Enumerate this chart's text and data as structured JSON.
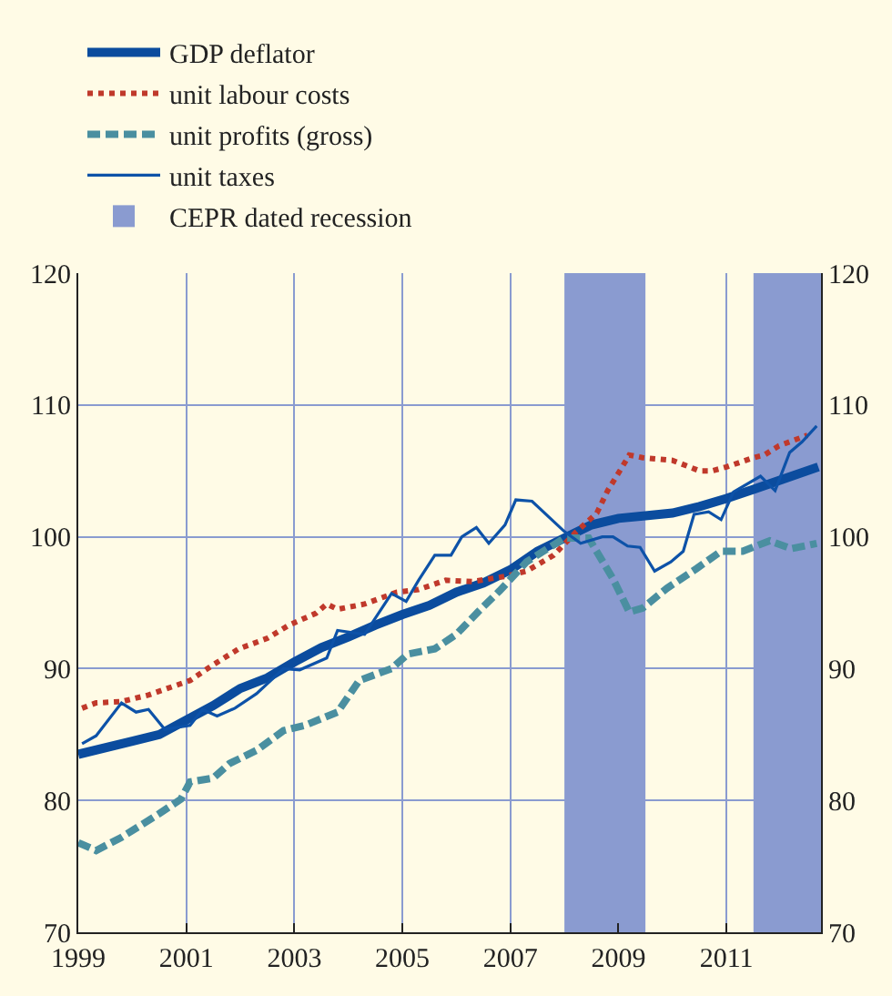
{
  "chart_data": {
    "type": "line",
    "xlim": [
      1999,
      2012.75
    ],
    "xticks": [
      1999,
      2001,
      2003,
      2005,
      2007,
      2009,
      2011
    ],
    "ylim": [
      70,
      120
    ],
    "yticks": [
      70,
      80,
      90,
      100,
      110,
      120
    ],
    "y2lim": [
      70,
      120
    ],
    "y2ticks": [
      70,
      80,
      90,
      100,
      110,
      120
    ],
    "grid": true,
    "legend": "top left",
    "marker": "none",
    "series": [
      {
        "name": "GDP deflator",
        "color": "#0b4c9e",
        "line_style": "solid",
        "x": [
          1999.0,
          2000,
          2000.5,
          2001,
          2001.5,
          2002,
          2002.5,
          2003,
          2003.5,
          2004,
          2004.5,
          2005,
          2005.5,
          2006,
          2006.5,
          2007,
          2007.5,
          2008,
          2008.5,
          2009,
          2009.5,
          2010,
          2010.5,
          2011,
          2011.5,
          2012,
          2012.7
        ],
        "values": [
          83.5,
          84.5,
          85.0,
          86.1,
          87.2,
          88.5,
          89.3,
          90.5,
          91.6,
          92.4,
          93.3,
          94.1,
          94.8,
          95.8,
          96.5,
          97.5,
          98.9,
          99.9,
          100.9,
          101.4,
          101.6,
          101.8,
          102.3,
          102.9,
          103.6,
          104.3,
          105.3
        ]
      },
      {
        "name": "unit labour costs",
        "color": "#c0392b",
        "line_style": "dotted",
        "x": [
          1999.07,
          1999.33,
          1999.8,
          2000.3,
          2001.07,
          2001.5,
          2001.97,
          2002.5,
          2002.9,
          2003.4,
          2003.6,
          2003.8,
          2004.3,
          2004.9,
          2005.3,
          2005.8,
          2006.3,
          2006.9,
          2007.3,
          2007.8,
          2008.2,
          2008.6,
          2008.8,
          2009.07,
          2009.2,
          2009.45,
          2010.0,
          2010.5,
          2010.73,
          2011.0,
          2011.5,
          2011.7,
          2011.97,
          2012.23,
          2012.5
        ],
        "values": [
          87.0,
          87.4,
          87.5,
          88.0,
          89.1,
          90.3,
          91.5,
          92.3,
          93.3,
          94.2,
          94.9,
          94.5,
          94.9,
          95.8,
          96.0,
          96.7,
          96.6,
          97.0,
          97.4,
          98.6,
          100.3,
          101.8,
          103.5,
          105.3,
          106.2,
          106.0,
          105.8,
          105.0,
          105.0,
          105.3,
          106.0,
          106.2,
          106.9,
          107.3,
          107.7
        ]
      },
      {
        "name": "unit profits (gross)",
        "color": "#4a8fa0",
        "line_style": "dashed",
        "x": [
          1999.0,
          1999.33,
          1999.8,
          2000.5,
          2000.9,
          2001.07,
          2001.5,
          2001.8,
          2002.3,
          2002.8,
          2003.2,
          2003.8,
          2004.2,
          2004.8,
          2005.1,
          2005.6,
          2006.0,
          2006.4,
          2006.8,
          2007.3,
          2008.0,
          2008.45,
          2008.9,
          2009.2,
          2009.45,
          2009.9,
          2010.45,
          2010.9,
          2011.3,
          2011.8,
          2012.2,
          2012.67
        ],
        "values": [
          76.8,
          76.2,
          77.2,
          79.0,
          80.1,
          81.4,
          81.7,
          82.8,
          83.8,
          85.3,
          85.7,
          86.7,
          89.1,
          90.0,
          91.1,
          91.5,
          92.6,
          94.3,
          95.9,
          98.1,
          99.9,
          99.9,
          96.8,
          94.3,
          94.6,
          96.1,
          97.6,
          98.9,
          98.9,
          99.7,
          99.1,
          99.5
        ]
      },
      {
        "name": "unit taxes",
        "color": "#0d52a8",
        "line_style": "solid",
        "x": [
          1999.07,
          1999.33,
          1999.8,
          2000.07,
          2000.3,
          2000.6,
          2001.07,
          2001.3,
          2001.57,
          2001.9,
          2002.3,
          2002.8,
          2003.1,
          2003.6,
          2003.8,
          2004.3,
          2004.8,
          2005.07,
          2005.3,
          2005.6,
          2005.9,
          2006.1,
          2006.37,
          2006.6,
          2006.9,
          2007.1,
          2007.4,
          2008.0,
          2008.3,
          2008.7,
          2008.9,
          2009.17,
          2009.4,
          2009.67,
          2009.97,
          2010.2,
          2010.4,
          2010.67,
          2010.9,
          2011.13,
          2011.63,
          2011.9,
          2012.17,
          2012.4,
          2012.67
        ],
        "values": [
          84.3,
          84.9,
          87.4,
          86.7,
          86.9,
          85.4,
          85.7,
          86.9,
          86.4,
          87.0,
          88.1,
          90.0,
          89.9,
          90.8,
          92.9,
          92.6,
          95.7,
          95.1,
          96.7,
          98.6,
          98.6,
          100.0,
          100.7,
          99.5,
          100.9,
          102.8,
          102.7,
          100.4,
          99.5,
          100.0,
          100.0,
          99.3,
          99.2,
          97.4,
          98.1,
          98.9,
          101.7,
          101.9,
          101.3,
          103.4,
          104.6,
          103.5,
          106.4,
          107.2,
          108.4
        ]
      }
    ],
    "bands": [
      {
        "axis": "x",
        "from": 2008.0,
        "to": 2009.5,
        "label": "CEPR dated recession",
        "color": "#8a9bd0"
      },
      {
        "axis": "x",
        "from": 2011.5,
        "to": 2012.75,
        "color": "#8a9bd0"
      }
    ]
  }
}
